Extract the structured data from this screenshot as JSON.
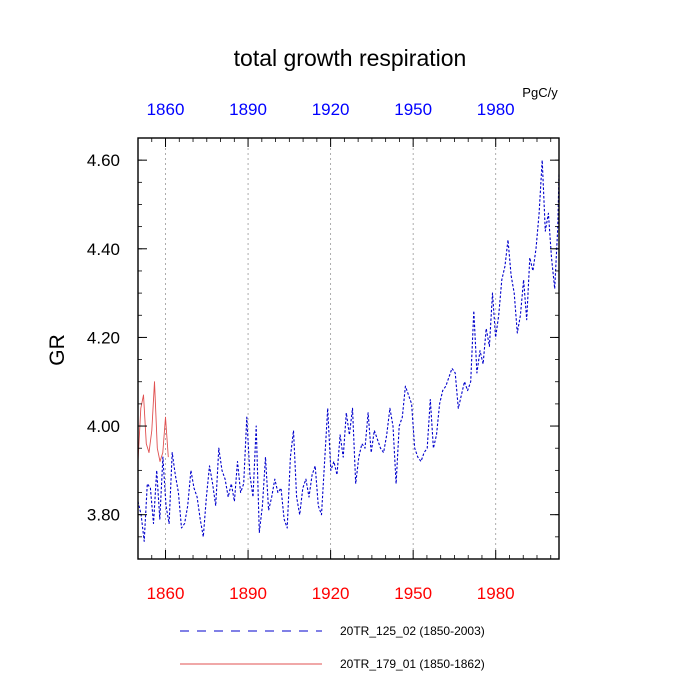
{
  "chart_data": {
    "type": "line",
    "title": "total growth respiration",
    "units": "PgC/y",
    "ylabel": "GR",
    "xlabel": "",
    "xlim": [
      1850,
      2003
    ],
    "ylim": [
      3.7,
      4.65
    ],
    "x_ticks": [
      1860,
      1890,
      1920,
      1950,
      1980
    ],
    "x_tick_labels": [
      "1860",
      "1890",
      "1920",
      "1950",
      "1980"
    ],
    "y_ticks": [
      3.8,
      4.0,
      4.2,
      4.4,
      4.6
    ],
    "y_tick_labels": [
      "3.80",
      "4.00",
      "4.20",
      "4.40",
      "4.60"
    ],
    "top_tick_color": "#0000ff",
    "bottom_tick_color": "#ff0000",
    "grid": "vertical dotted at x ticks",
    "legend_position": "bottom",
    "series": [
      {
        "name": "20TR_125_02 (1850-2003)",
        "color": "#0000cc",
        "dash": "dashed",
        "x_start": 1850,
        "values": [
          3.83,
          3.8,
          3.74,
          3.87,
          3.86,
          3.78,
          3.9,
          3.79,
          3.93,
          3.82,
          3.78,
          3.94,
          3.89,
          3.85,
          3.77,
          3.78,
          3.82,
          3.9,
          3.86,
          3.84,
          3.79,
          3.75,
          3.84,
          3.91,
          3.87,
          3.82,
          3.95,
          3.9,
          3.88,
          3.84,
          3.87,
          3.83,
          3.92,
          3.85,
          3.87,
          4.02,
          3.89,
          3.84,
          4.0,
          3.76,
          3.82,
          3.93,
          3.81,
          3.84,
          3.88,
          3.85,
          3.86,
          3.79,
          3.77,
          3.93,
          3.99,
          3.84,
          3.8,
          3.86,
          3.88,
          3.84,
          3.89,
          3.91,
          3.82,
          3.8,
          3.92,
          4.04,
          3.9,
          3.92,
          3.89,
          3.98,
          3.93,
          4.03,
          3.98,
          4.04,
          3.87,
          3.93,
          3.96,
          3.95,
          4.03,
          3.94,
          3.99,
          3.97,
          3.95,
          3.94,
          3.98,
          4.04,
          4.0,
          3.87,
          4.0,
          4.02,
          4.09,
          4.07,
          4.05,
          3.95,
          3.93,
          3.92,
          3.94,
          3.95,
          4.06,
          3.95,
          3.98,
          4.05,
          4.08,
          4.09,
          4.11,
          4.13,
          4.12,
          4.04,
          4.07,
          4.1,
          4.08,
          4.1,
          4.26,
          4.12,
          4.17,
          4.14,
          4.22,
          4.18,
          4.3,
          4.2,
          4.25,
          4.33,
          4.36,
          4.42,
          4.34,
          4.3,
          4.21,
          4.25,
          4.33,
          4.24,
          4.38,
          4.35,
          4.4,
          4.48,
          4.6,
          4.44,
          4.48,
          4.38,
          4.31,
          4.45,
          4.57,
          4.5
        ],
        "x_step": 1.13
      },
      {
        "name": "20TR_179_01 (1850-1862)",
        "color": "#e05050",
        "dash": "solid",
        "x_start": 1850,
        "values": [
          3.92,
          4.04,
          4.07,
          3.96,
          3.94,
          3.99,
          4.1,
          3.95,
          3.92,
          3.94,
          4.02,
          3.93
        ],
        "x_step": 1.0
      }
    ]
  }
}
